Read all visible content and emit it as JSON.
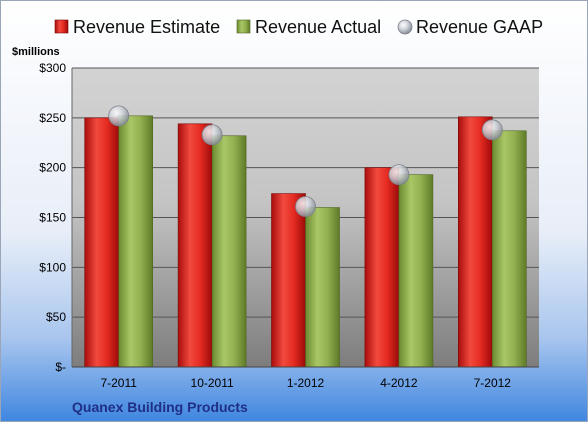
{
  "chart_data": {
    "type": "bar",
    "categories": [
      "7-2011",
      "10-2011",
      "1-2012",
      "4-2012",
      "7-2012"
    ],
    "series": [
      {
        "name": "Revenue Estimate",
        "values": [
          250,
          244,
          174,
          200,
          251
        ],
        "color": "#d91e18"
      },
      {
        "name": "Revenue Actual",
        "values": [
          252,
          232,
          160,
          193,
          237
        ],
        "color": "#8fb04a"
      },
      {
        "name": "Revenue GAAP",
        "values": [
          252,
          233,
          161,
          193,
          238
        ],
        "color": "#c8ccd4"
      }
    ],
    "series_types": [
      "bar",
      "bar",
      "marker"
    ],
    "ylabel": "$millions",
    "ylim": [
      0,
      300
    ],
    "yticks": [
      0,
      50,
      100,
      150,
      200,
      250,
      300
    ],
    "ytick_labels": [
      "$-",
      "$50",
      "$100",
      "$150",
      "$200",
      "$250",
      "$300"
    ],
    "grid": true,
    "legend_position": "top"
  },
  "footer": {
    "company": "Quanex Building Products"
  },
  "colors": {
    "background_top": "#ffffff",
    "background_bottom": "#3f86e0",
    "company_text": "#1f2f86"
  }
}
